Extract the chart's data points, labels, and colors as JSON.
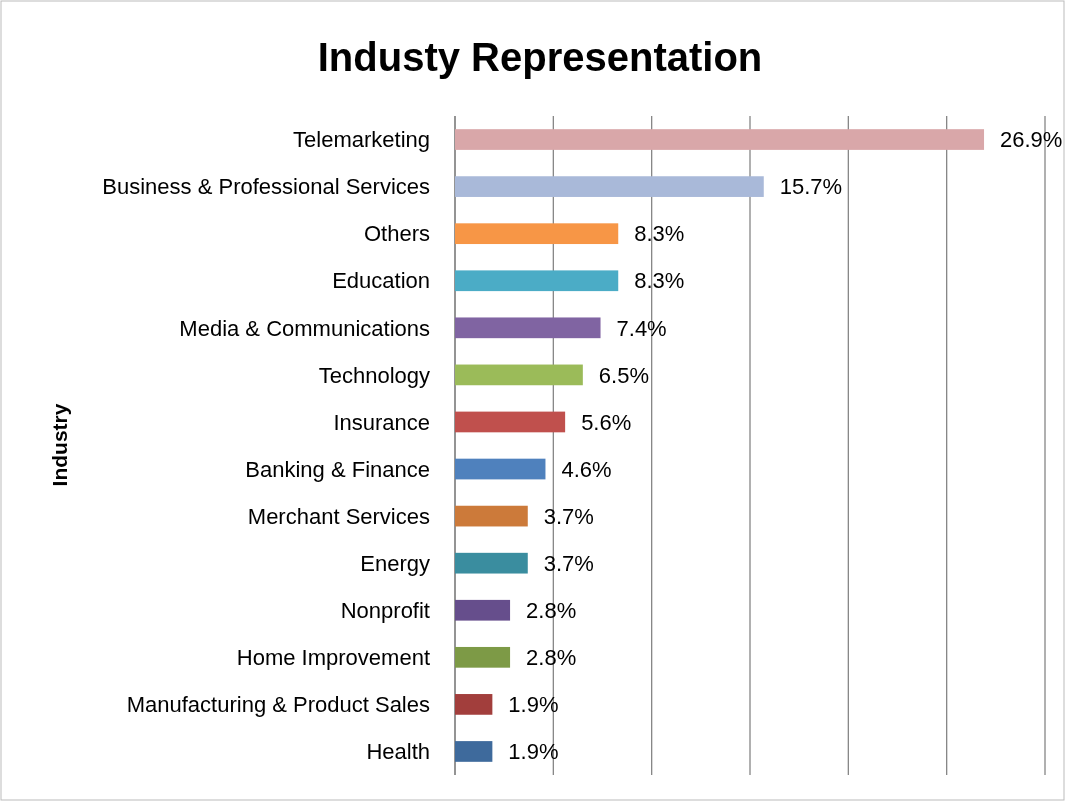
{
  "chart_data": {
    "type": "bar",
    "orientation": "horizontal",
    "title": "Industy Representation",
    "ylabel": "Industry",
    "categories": [
      "Telemarketing",
      "Business & Professional Services",
      "Others",
      "Education",
      "Media & Communications",
      "Technology",
      "Insurance",
      "Banking & Finance",
      "Merchant Services",
      "Energy",
      "Nonprofit",
      "Home Improvement",
      "Manufacturing & Product Sales",
      "Health"
    ],
    "values": [
      26.9,
      15.7,
      8.3,
      8.3,
      7.4,
      6.5,
      5.6,
      4.6,
      3.7,
      3.7,
      2.8,
      2.8,
      1.9,
      1.9
    ],
    "value_labels": [
      "26.9%",
      "15.7%",
      "8.3%",
      "8.3%",
      "7.4%",
      "6.5%",
      "5.6%",
      "4.6%",
      "3.7%",
      "3.7%",
      "2.8%",
      "2.8%",
      "1.9%",
      "1.9%"
    ],
    "colors": [
      "#d9a7a9",
      "#a9b9d9",
      "#f79646",
      "#4bacc6",
      "#8064a2",
      "#9bbb59",
      "#c0504d",
      "#4f81bd",
      "#cc7a3a",
      "#3a8d9f",
      "#664e8c",
      "#7d9a46",
      "#a23e3c",
      "#3e6a9c"
    ],
    "xlim": [
      0,
      30
    ],
    "xticks": [
      {
        "value": 0,
        "label": null
      },
      {
        "value": 5,
        "label": null
      },
      {
        "value": 10,
        "label": null
      },
      {
        "value": 15,
        "label": null
      },
      {
        "value": 20,
        "label": null
      },
      {
        "value": 25,
        "label": null
      },
      {
        "value": 30,
        "label": null
      }
    ],
    "grid": "x",
    "tick_labels": "y"
  }
}
